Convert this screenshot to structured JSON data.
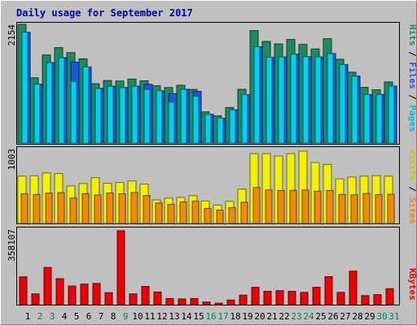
{
  "chart_data": {
    "type": "bar",
    "title": "Daily usage for September 2017",
    "categories": [
      "1",
      "2",
      "3",
      "4",
      "5",
      "6",
      "7",
      "8",
      "9",
      "10",
      "11",
      "12",
      "13",
      "14",
      "15",
      "16",
      "17",
      "18",
      "19",
      "20",
      "21",
      "22",
      "23",
      "24",
      "25",
      "26",
      "27",
      "28",
      "29",
      "30",
      "31"
    ],
    "weekend_days": [
      "2",
      "3",
      "9",
      "16",
      "17",
      "23",
      "24",
      "30",
      "31"
    ],
    "panels": [
      {
        "max_label": "2154",
        "max_value": 2154,
        "legend": [
          "Pages",
          "Files",
          "Hits"
        ],
        "series": [
          {
            "name": "Hits",
            "color": "#1e8a5f",
            "values": [
              2154,
              1184,
              1598,
              1732,
              1641,
              1528,
              1076,
              1133,
              1125,
              1161,
              1129,
              1039,
              1007,
              1049,
              972,
              565,
              494,
              645,
              975,
              2041,
              1844,
              1799,
              1880,
              1790,
              1708,
              1894,
              1521,
              1285,
              1009,
              966,
              1107
            ]
          },
          {
            "name": "Files",
            "color": "#1e56e0",
            "values": [
              2010,
              1068,
              1459,
              1548,
              1469,
              1381,
              992,
              1031,
              1007,
              1033,
              1066,
              947,
              896,
              975,
              938,
              521,
              450,
              603,
              877,
              1747,
              1557,
              1563,
              1614,
              1568,
              1563,
              1624,
              1425,
              1215,
              879,
              880,
              1033
            ]
          },
          {
            "name": "Pages",
            "color": "#00d0f0",
            "values": [
              2010,
              1068,
              1459,
              1548,
              1119,
              1381,
              992,
              1031,
              1007,
              1033,
              970,
              947,
              742,
              975,
              847,
              521,
              450,
              603,
              877,
              1747,
              1557,
              1563,
              1614,
              1568,
              1563,
              1624,
              1425,
              1215,
              879,
              880,
              1033
            ]
          }
        ]
      },
      {
        "max_label": "1003",
        "max_value": 1003,
        "legend": [
          "Sites",
          "Visits"
        ],
        "series": [
          {
            "name": "Visits",
            "color": "#f2f200",
            "values": [
              657,
              661,
              701,
              692,
              520,
              554,
              635,
              557,
              568,
              589,
              545,
              326,
              352,
              361,
              385,
              311,
              256,
              307,
              476,
              968,
              968,
              935,
              968,
              1003,
              844,
              819,
              617,
              644,
              656,
              664,
              656
            ]
          },
          {
            "name": "Sites",
            "color": "#f08a00",
            "values": [
              412,
              400,
              421,
              427,
              352,
              413,
              395,
              422,
              411,
              428,
              387,
              285,
              264,
              298,
              308,
              208,
              185,
              219,
              293,
              498,
              464,
              456,
              460,
              464,
              447,
              456,
              403,
              397,
              415,
              399,
              404
            ]
          }
        ]
      },
      {
        "max_label": "358107",
        "max_value": 358107,
        "legend": [
          "KBytes"
        ],
        "series": [
          {
            "name": "KBytes",
            "color": "#ee0000",
            "values": [
              135108,
              52281,
              180300,
              126000,
              90400,
              99900,
              103000,
              58300,
              358107,
              52281,
              88600,
              61250,
              29900,
              27800,
              29900,
              12800,
              7450,
              22400,
              46000,
              84100,
              64800,
              68000,
              64800,
              59600,
              84100,
              135900,
              59600,
              162300,
              44000,
              48800,
              77300
            ]
          }
        ]
      }
    ],
    "colors": {
      "title": "#0000aa",
      "weekday_label": "#000000",
      "weekend_label": "#00804f"
    }
  }
}
